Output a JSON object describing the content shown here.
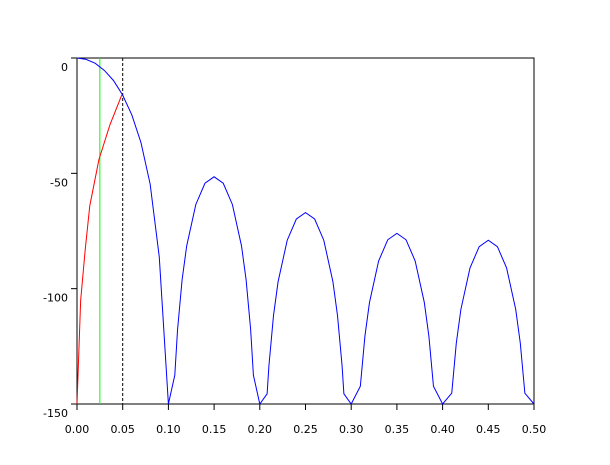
{
  "chart_data": {
    "type": "line",
    "xlim": [
      0,
      0.5
    ],
    "ylim": [
      -150,
      0
    ],
    "xticks": [
      {
        "value": 0,
        "label": "0.00"
      },
      {
        "value": 0.05,
        "label": "0.05"
      },
      {
        "value": 0.1,
        "label": "0.10"
      },
      {
        "value": 0.15,
        "label": "0.15"
      },
      {
        "value": 0.2,
        "label": "0.20"
      },
      {
        "value": 0.25,
        "label": "0.25"
      },
      {
        "value": 0.3,
        "label": "0.30"
      },
      {
        "value": 0.35,
        "label": "0.35"
      },
      {
        "value": 0.4,
        "label": "0.40"
      },
      {
        "value": 0.45,
        "label": "0.45"
      },
      {
        "value": 0.5,
        "label": "0.50"
      }
    ],
    "yticks": [
      -150,
      -100,
      -50,
      0
    ],
    "series": [
      {
        "color": "#0000ff",
        "x": [
          0,
          0.01,
          0.02,
          0.03,
          0.04,
          0.05,
          0.06,
          0.07,
          0.08,
          0.09,
          0.095,
          0.1,
          0.107,
          0.11,
          0.115,
          0.12,
          0.13,
          0.14,
          0.15,
          0.16,
          0.17,
          0.18,
          0.185,
          0.19,
          0.193,
          0.2,
          0.208,
          0.21,
          0.215,
          0.22,
          0.23,
          0.24,
          0.25,
          0.26,
          0.27,
          0.28,
          0.285,
          0.29,
          0.292,
          0.3,
          0.31,
          0.315,
          0.32,
          0.33,
          0.34,
          0.35,
          0.36,
          0.37,
          0.38,
          0.385,
          0.39,
          0.4,
          0.41,
          0.415,
          0.42,
          0.43,
          0.44,
          0.45,
          0.46,
          0.47,
          0.48,
          0.485,
          0.49,
          0.5
        ],
        "values": [
          0,
          -0.6,
          -2.3,
          -5.4,
          -9.8,
          -16.1,
          -24.7,
          -36.7,
          -54.6,
          -86.2,
          -118,
          -150,
          -137.5,
          -117.8,
          -96.1,
          -81.5,
          -63.5,
          -54.3,
          -51.5,
          -54.3,
          -63.5,
          -81.5,
          -96.1,
          -117.8,
          -137.5,
          -150,
          -145.6,
          -133.3,
          -111.6,
          -97,
          -79,
          -69.8,
          -67,
          -69.8,
          -79,
          -97,
          -111.6,
          -133.3,
          -145.6,
          -150,
          -142.3,
          -120.6,
          -106,
          -88,
          -78.8,
          -76,
          -78.8,
          -88,
          -106,
          -120.6,
          -142.3,
          -150,
          -145.3,
          -123.6,
          -109,
          -91,
          -81.8,
          -79,
          -81.8,
          -91,
          -109,
          -123.6,
          -145.3,
          -150
        ]
      },
      {
        "color": "#ff0000",
        "x": [
          0,
          0.004,
          0.009,
          0.014,
          0.024,
          0.036,
          0.049
        ],
        "values": [
          -150,
          -105,
          -83,
          -64,
          -44,
          -29,
          -16
        ]
      }
    ],
    "vlines": [
      {
        "x": 0.025,
        "color": "#00ff00",
        "dashed": false
      },
      {
        "x": 0.05,
        "color": "#000000",
        "dashed": true
      }
    ]
  }
}
